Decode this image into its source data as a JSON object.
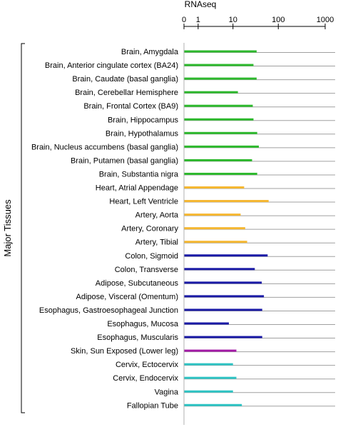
{
  "chart_data": {
    "type": "bar",
    "orientation": "horizontal",
    "title": "",
    "xlabel": "RNAseq",
    "ylabel": "Major Tissues",
    "x_scale": "log1p",
    "xlim": [
      0,
      1000
    ],
    "x_ticks": [
      0,
      1,
      10,
      100,
      1000
    ],
    "x_tick_labels": [
      "0",
      "1",
      "10",
      "100",
      "1000"
    ],
    "grid": false,
    "legend": "none",
    "categories": [
      "Brain, Amygdala",
      "Brain, Anterior cingulate cortex (BA24)",
      "Brain, Caudate (basal ganglia)",
      "Brain, Cerebellar Hemisphere",
      "Brain, Frontal Cortex (BA9)",
      "Brain, Hippocampus",
      "Brain, Hypothalamus",
      "Brain, Nucleus accumbens (basal ganglia)",
      "Brain, Putamen (basal ganglia)",
      "Brain, Substantia nigra",
      "Heart, Atrial Appendage",
      "Heart, Left Ventricle",
      "Artery, Aorta",
      "Artery, Coronary",
      "Artery, Tibial",
      "Colon, Sigmoid",
      "Colon, Transverse",
      "Adipose, Subcutaneous",
      "Adipose, Visceral (Omentum)",
      "Esophagus, Gastroesophageal Junction",
      "Esophagus, Mucosa",
      "Esophagus, Muscularis",
      "Skin, Sun Exposed (Lower leg)",
      "Cervix, Ectocervix",
      "Cervix, Endocervix",
      "Vagina",
      "Fallopian Tube"
    ],
    "values": [
      34,
      29,
      34,
      13,
      28,
      29,
      35,
      38,
      27,
      35,
      18,
      62,
      15,
      19,
      21,
      59,
      31,
      44,
      49,
      45,
      8,
      45,
      12,
      10,
      12,
      10,
      16
    ],
    "colors": [
      "#2db92d",
      "#2db92d",
      "#2db92d",
      "#2db92d",
      "#2db92d",
      "#2db92d",
      "#2db92d",
      "#2db92d",
      "#2db92d",
      "#2db92d",
      "#f5b731",
      "#f5b731",
      "#f5b731",
      "#f5b731",
      "#f5b731",
      "#1a1aa6",
      "#1a1aa6",
      "#1a1aa6",
      "#1a1aa6",
      "#1a1aa6",
      "#1a1aa6",
      "#1a1aa6",
      "#a31aa6",
      "#2ec4c4",
      "#2ec4c4",
      "#2ec4c4",
      "#2ec4c4"
    ],
    "baseline_color": "#a0a0a0",
    "axis_color": "#000000"
  }
}
